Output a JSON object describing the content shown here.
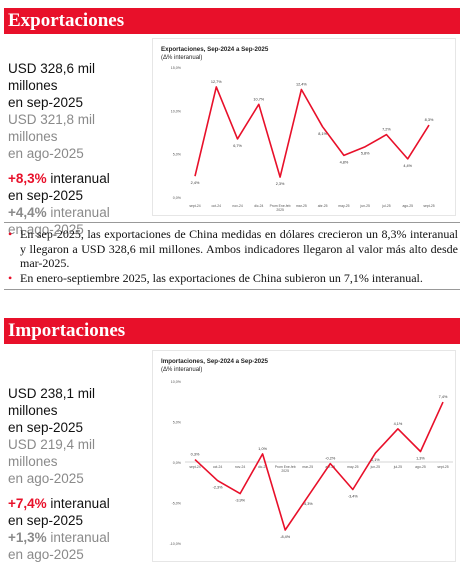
{
  "exportaciones": {
    "header": "Exportaciones",
    "kpi": {
      "current_value": "USD 328,6 mil millones",
      "current_period": "en sep-2025",
      "previous_value": "USD 321,8 mil millones",
      "previous_period": "en ago-2025",
      "current_pct": "+8,3%",
      "current_pct_suffix": " interanual",
      "current_pct_period": "en sep-2025",
      "previous_pct": "+4,4%",
      "previous_pct_suffix": " interanual",
      "previous_pct_period": "en ago-2025"
    },
    "bullets": [
      "En sep-2025, las exportaciones de China medidas en dólares crecieron un 8,3% interanual y llegaron a USD 328,6 mil millones. Ambos indicadores llegaron al valor más alto desde mar-2025.",
      "En enero-septiembre 2025, las exportaciones de China subieron un 7,1% interanual."
    ]
  },
  "importaciones": {
    "header": "Importaciones",
    "kpi": {
      "current_value": "USD 238,1 mil millones",
      "current_period": "en sep-2025",
      "previous_value": "USD 219,4 mil millones",
      "previous_period": "en ago-2025",
      "current_pct": "+7,4%",
      "current_pct_suffix": " interanual",
      "current_pct_period": "en sep-2025",
      "previous_pct": "+1,3%",
      "previous_pct_suffix": " interanual",
      "previous_pct_period": "en ago-2025"
    }
  },
  "colors": {
    "accent": "#e8102a",
    "muted": "#8a8a8a"
  },
  "chart_data": [
    {
      "type": "line",
      "title": "Exportaciones, Sep-2024 a Sep-2025",
      "subtitle": "(Δ% interanual)",
      "categories": [
        "sept-24",
        "oct-24",
        "nov-24",
        "dic-24",
        "Prom Ene-feb 2025",
        "mar-25",
        "abr-25",
        "may-25",
        "jun-25",
        "jul-25",
        "ago-25",
        "sept-25"
      ],
      "values": [
        2.4,
        12.7,
        6.7,
        10.7,
        2.3,
        12.4,
        8.1,
        4.8,
        5.8,
        7.2,
        4.4,
        8.3
      ],
      "value_labels": [
        "2,4%",
        "12,7%",
        "6,7%",
        "10,7%",
        "2,3%",
        "12,4%",
        "8,1%",
        "4,8%",
        "5,8%",
        "7,2%",
        "4,4%",
        "8,3%"
      ],
      "yticks": [
        "15,0%",
        "10,0%",
        "5,0%",
        "0,0%"
      ],
      "ylim": [
        0,
        15
      ],
      "color": "#e8102a"
    },
    {
      "type": "line",
      "title": "Importaciones, Sep-2024 a Sep-2025",
      "subtitle": "(Δ% interanual)",
      "categories": [
        "sept-24",
        "oct-24",
        "nov-24",
        "dic-24",
        "Prom Ene-feb 2025",
        "mar-25",
        "abr-25",
        "may-25",
        "jun-25",
        "jul-25",
        "ago-25",
        "sept-25"
      ],
      "values": [
        0.3,
        -2.3,
        -3.9,
        1.0,
        -8.4,
        -4.3,
        -0.2,
        -3.4,
        1.1,
        4.1,
        1.3,
        7.4
      ],
      "value_labels": [
        "0,3%",
        "-2,3%",
        "-3,9%",
        "1,0%",
        "-8,4%",
        "-4,3%",
        "-0,2%",
        "-3,4%",
        "1,1%",
        "4,1%",
        "1,3%",
        "7,4%"
      ],
      "yticks": [
        "10,0%",
        "5,0%",
        "0,0%",
        "-5,0%",
        "-10,0%"
      ],
      "ylim": [
        -10,
        10
      ],
      "color": "#e8102a"
    }
  ]
}
